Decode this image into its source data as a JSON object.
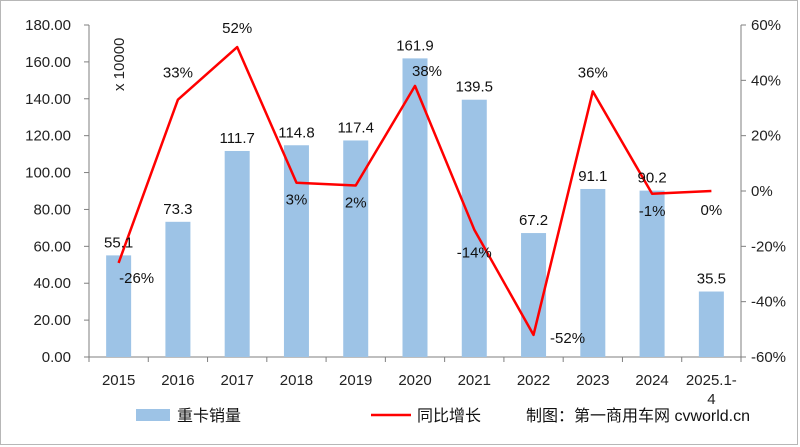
{
  "chart_data": {
    "type": "bar+line",
    "categories": [
      "2015",
      "2016",
      "2017",
      "2018",
      "2019",
      "2020",
      "2021",
      "2022",
      "2023",
      "2024",
      "2025.1-4"
    ],
    "series": [
      {
        "name": "重卡销量",
        "type": "bar",
        "axis": "left",
        "values": [
          55.1,
          73.3,
          111.7,
          114.8,
          117.4,
          161.9,
          139.5,
          67.2,
          91.1,
          90.2,
          35.5
        ],
        "labels": [
          "55.1",
          "73.3",
          "111.7",
          "114.8",
          "117.4",
          "161.9",
          "139.5",
          "67.2",
          "91.1",
          "90.2",
          "35.5"
        ],
        "color": "#9dc3e6"
      },
      {
        "name": "同比增长",
        "type": "line",
        "axis": "right",
        "values": [
          -26,
          33,
          52,
          3,
          2,
          38,
          -14,
          -52,
          36,
          -1,
          0
        ],
        "labels": [
          "-26%",
          "33%",
          "52%",
          "3%",
          "2%",
          "38%",
          "-14%",
          "-52%",
          "36%",
          "-1%",
          "0%"
        ],
        "color": "#ff0000"
      }
    ],
    "y_left": {
      "ylim": [
        0,
        180
      ],
      "ticks": [
        "0.00",
        "20.00",
        "40.00",
        "60.00",
        "80.00",
        "100.00",
        "120.00",
        "140.00",
        "160.00",
        "180.00"
      ],
      "unit_label": "x 10000"
    },
    "y_right": {
      "ylim": [
        -60,
        60
      ],
      "ticks": [
        "-60%",
        "-40%",
        "-20%",
        "0%",
        "20%",
        "40%",
        "60%"
      ]
    },
    "legend_position": "bottom",
    "grid": false,
    "source": "制图：第一商用车网 cvworld.cn"
  }
}
